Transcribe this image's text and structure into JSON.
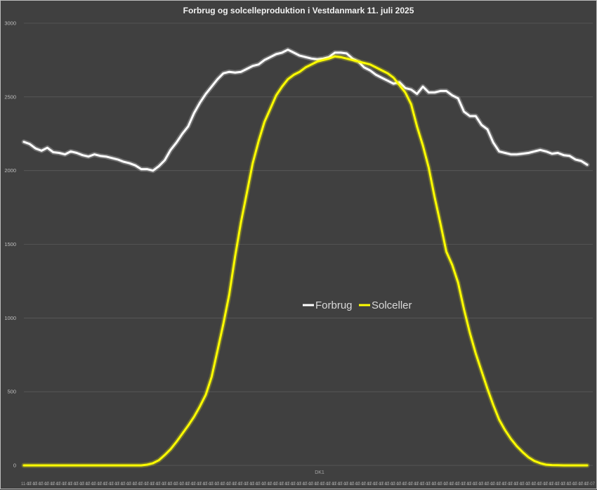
{
  "chart_data": {
    "type": "line",
    "title": "Forbrug og solcelleproduktion i Vestdanmark 11. juli 2025",
    "xlabel": "DK1",
    "ylabel": "",
    "ylim": [
      0,
      3000
    ],
    "yticks": [
      0,
      500,
      1000,
      1500,
      2000,
      2500,
      3000
    ],
    "grid": true,
    "legend_position": "center",
    "first_x_tick_label": "11-07",
    "series": [
      {
        "name": "Forbrug",
        "color": "#ffffff",
        "values": [
          2195,
          2180,
          2150,
          2135,
          2155,
          2125,
          2120,
          2110,
          2130,
          2120,
          2105,
          2095,
          2110,
          2100,
          2095,
          2085,
          2075,
          2060,
          2050,
          2035,
          2010,
          2010,
          2000,
          2030,
          2070,
          2140,
          2190,
          2250,
          2300,
          2390,
          2460,
          2520,
          2570,
          2620,
          2660,
          2670,
          2665,
          2670,
          2690,
          2710,
          2720,
          2750,
          2770,
          2790,
          2800,
          2820,
          2800,
          2780,
          2770,
          2760,
          2755,
          2760,
          2770,
          2800,
          2800,
          2795,
          2760,
          2740,
          2700,
          2680,
          2650,
          2630,
          2610,
          2590,
          2600,
          2560,
          2550,
          2520,
          2570,
          2530,
          2530,
          2540,
          2540,
          2510,
          2490,
          2400,
          2370,
          2370,
          2310,
          2280,
          2190,
          2130,
          2120,
          2110,
          2110,
          2115,
          2120,
          2130,
          2140,
          2130,
          2115,
          2120,
          2105,
          2100,
          2075,
          2065,
          2040
        ]
      },
      {
        "name": "Solceller",
        "color": "#ffff00",
        "values": [
          0,
          0,
          0,
          0,
          0,
          0,
          0,
          0,
          0,
          0,
          0,
          0,
          0,
          0,
          0,
          0,
          0,
          0,
          0,
          0,
          0,
          5,
          15,
          35,
          70,
          110,
          160,
          215,
          270,
          330,
          400,
          480,
          600,
          780,
          960,
          1160,
          1420,
          1650,
          1850,
          2050,
          2200,
          2330,
          2420,
          2510,
          2570,
          2620,
          2650,
          2670,
          2700,
          2720,
          2740,
          2750,
          2760,
          2775,
          2770,
          2760,
          2750,
          2740,
          2730,
          2720,
          2700,
          2680,
          2660,
          2630,
          2580,
          2530,
          2450,
          2300,
          2170,
          2020,
          1820,
          1640,
          1450,
          1360,
          1240,
          1060,
          900,
          760,
          640,
          520,
          410,
          310,
          240,
          180,
          130,
          90,
          55,
          30,
          15,
          5,
          2,
          1,
          0,
          0,
          0,
          0,
          0
        ]
      }
    ]
  }
}
